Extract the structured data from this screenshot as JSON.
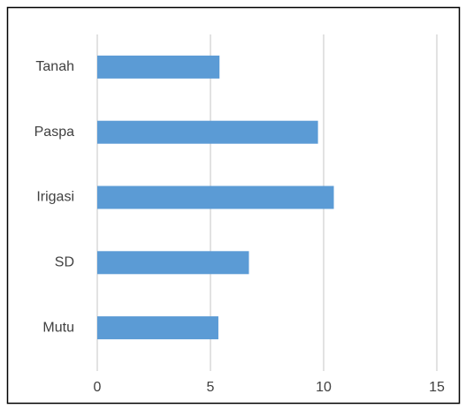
{
  "chart_data": {
    "type": "barh",
    "categories": [
      "Tanah",
      "Paspa",
      "Irigasi",
      "SD",
      "Mutu"
    ],
    "values": [
      5.4,
      9.75,
      10.45,
      6.7,
      5.35
    ],
    "color": "#5b9bd5",
    "xlim": [
      0,
      15
    ],
    "xticks": [
      0,
      5,
      10,
      15
    ],
    "grid": true
  }
}
